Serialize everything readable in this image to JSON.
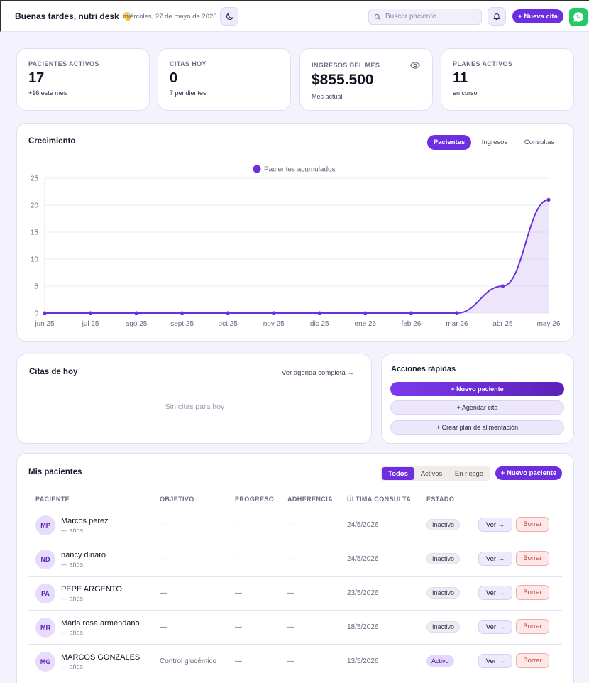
{
  "header": {
    "greeting": "Buenas tardes, nutri desk 👋",
    "date": "miércoles, 27 de mayo de 2026",
    "search_placeholder": "Buscar paciente...",
    "new_appointment_label": "+ Nueva cita"
  },
  "stats": [
    {
      "label": "PACIENTES ACTIVOS",
      "value": "17",
      "sub": "+16 este mes"
    },
    {
      "label": "CITAS HOY",
      "value": "0",
      "sub": "7 pendientes"
    },
    {
      "label": "INGRESOS DEL MES",
      "value": "$855.500",
      "sub": "Mes actual"
    },
    {
      "label": "PLANES ACTIVOS",
      "value": "11",
      "sub": "en curso"
    }
  ],
  "growth": {
    "title": "Crecimiento",
    "tabs": [
      "Pacientes",
      "Ingresos",
      "Consultas"
    ],
    "active_tab": "Pacientes"
  },
  "chart_data": {
    "type": "area",
    "series": [
      {
        "name": "Pacientes acumulados",
        "values": [
          0,
          0,
          0,
          0,
          0,
          0,
          0,
          0,
          0,
          0,
          5,
          21
        ]
      }
    ],
    "categories": [
      "jun 25",
      "jul 25",
      "ago 25",
      "sept 25",
      "oct 25",
      "nov 25",
      "dic 25",
      "ene 26",
      "feb 26",
      "mar 26",
      "abr 26",
      "may 26"
    ],
    "yticks": [
      0,
      5,
      10,
      15,
      20,
      25
    ],
    "ylim": [
      0,
      25
    ],
    "legend": "top-center",
    "grid": true,
    "color": "#6d2ee0"
  },
  "appointments": {
    "title": "Citas de hoy",
    "link": "Ver agenda completa →",
    "empty": "Sin citas para hoy"
  },
  "quick_actions": {
    "title": "Acciones rápidas",
    "items": [
      "+ Nuevo paciente",
      "+ Agendar cita",
      "+ Crear plan de alimentación"
    ]
  },
  "patients": {
    "title": "Mis pacientes",
    "filters": [
      "Todos",
      "Activos",
      "En riesgo"
    ],
    "active_filter": "Todos",
    "new_label": "+ Nuevo paciente",
    "columns": [
      "PACIENTE",
      "OBJETIVO",
      "PROGRESO",
      "ADHERENCIA",
      "ÚLTIMA CONSULTA",
      "ESTADO"
    ],
    "view_label": "Ver →",
    "delete_label": "Borrar",
    "rows": [
      {
        "initials": "MP",
        "name": "Marcos perez",
        "age": "— años",
        "objective": "—",
        "progress": "—",
        "adherence": "—",
        "last": "24/5/2026",
        "status": "Inactivo"
      },
      {
        "initials": "ND",
        "name": "nancy dinaro",
        "age": "— años",
        "objective": "—",
        "progress": "—",
        "adherence": "—",
        "last": "24/5/2026",
        "status": "Inactivo"
      },
      {
        "initials": "PA",
        "name": "PEPE ARGENTO",
        "age": "— años",
        "objective": "—",
        "progress": "—",
        "adherence": "—",
        "last": "23/5/2026",
        "status": "Inactivo"
      },
      {
        "initials": "MR",
        "name": "Maria rosa armendano",
        "age": "— años",
        "objective": "—",
        "progress": "—",
        "adherence": "—",
        "last": "18/5/2026",
        "status": "Inactivo"
      },
      {
        "initials": "MG",
        "name": "MARCOS GONZALES",
        "age": "— años",
        "objective": "Control glucémico",
        "progress": "—",
        "adherence": "—",
        "last": "13/5/2026",
        "status": "Activo"
      }
    ]
  },
  "colors": {
    "accent": "#6d2ee0",
    "background": "#f4f2fd",
    "whatsapp": "#25c866",
    "danger": "#d13b3b"
  },
  "icons": [
    "moon-icon",
    "search-icon",
    "bell-icon",
    "whatsapp-icon",
    "eye-icon"
  ]
}
